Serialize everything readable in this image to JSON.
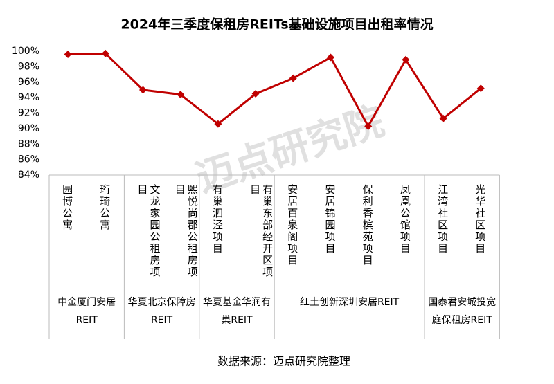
{
  "chart_data": {
    "type": "line",
    "title": "2024年三季度保租房REITs基础设施项目出租率情况",
    "groups": [
      {
        "name": "中金厦门安居REIT",
        "categories": [
          "园博公寓",
          "珩琦公寓"
        ]
      },
      {
        "name": "华夏北京保障房REIT",
        "categories": [
          "文龙家园公租房项目",
          "熙悦尚郡公租房项目"
        ]
      },
      {
        "name": "华夏基金华润有巢REIT",
        "categories": [
          "有巢泗泾项目",
          "有巢东部经开区项目"
        ]
      },
      {
        "name": "红土创新深圳安居REIT",
        "categories": [
          "安居百泉阁项目",
          "安居锦园项目",
          "保利香槟苑项目",
          "凤凰公馆项目"
        ]
      },
      {
        "name": "国泰君安城投宽庭保租房REIT",
        "categories": [
          "江湾社区项目",
          "光华社区项目"
        ]
      }
    ],
    "series": [
      {
        "color": "#c00000",
        "values": [
          99.6,
          99.7,
          95.0,
          94.4,
          90.6,
          94.5,
          96.5,
          99.2,
          90.3,
          98.9,
          91.3,
          95.2
        ]
      }
    ],
    "ylim": [
      84,
      100
    ],
    "yticks": [
      {
        "value": 84,
        "label": "84%"
      },
      {
        "value": 86,
        "label": "86%"
      },
      {
        "value": 88,
        "label": "88%"
      },
      {
        "value": 90,
        "label": "90%"
      },
      {
        "value": 92,
        "label": "92%"
      },
      {
        "value": 94,
        "label": "94%"
      },
      {
        "value": 96,
        "label": "96%"
      },
      {
        "value": 98,
        "label": "98%"
      },
      {
        "value": 100,
        "label": "100%"
      }
    ],
    "grid": false,
    "watermark": "迈点研究院",
    "source": "数据来源：迈点研究院整理"
  }
}
